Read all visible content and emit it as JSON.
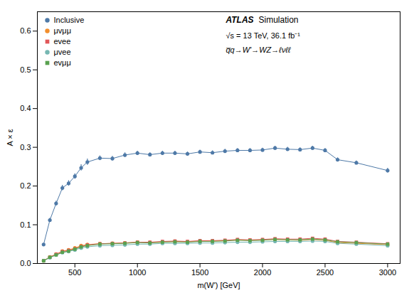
{
  "chart_data": {
    "type": "line",
    "xlabel": "m(W') [GeV]",
    "ylabel": "A × ε",
    "xlim": [
      200,
      3100
    ],
    "ylim": [
      0,
      0.65
    ],
    "xticks": [
      500,
      1000,
      1500,
      2000,
      2500,
      3000
    ],
    "yticks": [
      {
        "value": 0,
        "label": "0.0"
      },
      0.1,
      0.2,
      0.3,
      0.4,
      0.5,
      0.6
    ],
    "grid": false,
    "legend": "upper left",
    "annotations": [
      "ATLAS",
      "Simulation",
      "√s = 13 TeV, 36.1 fb⁻¹",
      "q̅q→W'→WZ→ℓνℓℓ"
    ],
    "x": [
      250,
      300,
      350,
      400,
      450,
      500,
      550,
      600,
      700,
      800,
      900,
      1000,
      1100,
      1200,
      1300,
      1400,
      1500,
      1600,
      1700,
      1800,
      1900,
      2000,
      2100,
      2200,
      2300,
      2400,
      2500,
      2600,
      2750,
      3000
    ],
    "series": [
      {
        "name": "Inclusive",
        "marker": "circle",
        "values": [
          0.049,
          0.112,
          0.155,
          0.195,
          0.207,
          0.225,
          0.247,
          0.262,
          0.272,
          0.271,
          0.28,
          0.285,
          0.281,
          0.285,
          0.285,
          0.283,
          0.288,
          0.286,
          0.29,
          0.292,
          0.292,
          0.293,
          0.298,
          0.295,
          0.294,
          0.298,
          0.292,
          0.268,
          0.26,
          0.24
        ],
        "errors": [
          0.003,
          0.005,
          0.006,
          0.007,
          0.007,
          0.007,
          0.008,
          0.008,
          0.006,
          0.006,
          0.006,
          0.005,
          0.005,
          0.005,
          0.005,
          0.005,
          0.005,
          0.005,
          0.005,
          0.005,
          0.005,
          0.005,
          0.005,
          0.005,
          0.005,
          0.005,
          0.005,
          0.005,
          0.005,
          0.006
        ]
      },
      {
        "name": "μvμμ",
        "marker": "circle",
        "values": [
          0.007,
          0.017,
          0.024,
          0.032,
          0.035,
          0.04,
          0.046,
          0.049,
          0.051,
          0.052,
          0.053,
          0.055,
          0.054,
          0.055,
          0.057,
          0.056,
          0.058,
          0.058,
          0.059,
          0.061,
          0.06,
          0.061,
          0.062,
          0.061,
          0.06,
          0.062,
          0.06,
          0.054,
          0.052,
          0.049
        ],
        "errors": [
          0.001,
          0.002,
          0.002,
          0.003,
          0.003,
          0.003,
          0.003,
          0.003,
          0.002,
          0.002,
          0.002,
          0.002,
          0.002,
          0.002,
          0.002,
          0.002,
          0.002,
          0.002,
          0.002,
          0.002,
          0.002,
          0.002,
          0.002,
          0.002,
          0.002,
          0.002,
          0.002,
          0.002,
          0.002,
          0.002
        ]
      },
      {
        "name": "evee",
        "marker": "square",
        "values": [
          0.007,
          0.016,
          0.024,
          0.031,
          0.034,
          0.038,
          0.044,
          0.048,
          0.051,
          0.052,
          0.053,
          0.055,
          0.055,
          0.057,
          0.058,
          0.057,
          0.059,
          0.059,
          0.06,
          0.062,
          0.061,
          0.062,
          0.064,
          0.063,
          0.063,
          0.065,
          0.063,
          0.057,
          0.055,
          0.051
        ],
        "errors": [
          0.001,
          0.002,
          0.002,
          0.002,
          0.002,
          0.003,
          0.003,
          0.003,
          0.002,
          0.002,
          0.002,
          0.002,
          0.002,
          0.002,
          0.002,
          0.002,
          0.002,
          0.002,
          0.002,
          0.002,
          0.002,
          0.002,
          0.002,
          0.002,
          0.002,
          0.002,
          0.002,
          0.002,
          0.002,
          0.002
        ]
      },
      {
        "name": "μvee",
        "marker": "circle",
        "values": [
          0.007,
          0.015,
          0.022,
          0.028,
          0.031,
          0.035,
          0.04,
          0.043,
          0.046,
          0.047,
          0.048,
          0.05,
          0.05,
          0.052,
          0.052,
          0.052,
          0.053,
          0.053,
          0.054,
          0.055,
          0.055,
          0.056,
          0.057,
          0.057,
          0.057,
          0.058,
          0.057,
          0.052,
          0.05,
          0.046
        ],
        "errors": [
          0.001,
          0.002,
          0.002,
          0.002,
          0.002,
          0.003,
          0.003,
          0.003,
          0.002,
          0.002,
          0.002,
          0.002,
          0.002,
          0.002,
          0.002,
          0.002,
          0.002,
          0.002,
          0.002,
          0.002,
          0.002,
          0.002,
          0.002,
          0.002,
          0.002,
          0.002,
          0.002,
          0.002,
          0.002,
          0.002
        ]
      },
      {
        "name": "evμμ",
        "marker": "square",
        "values": [
          0.007,
          0.016,
          0.022,
          0.029,
          0.032,
          0.037,
          0.043,
          0.046,
          0.05,
          0.051,
          0.052,
          0.054,
          0.053,
          0.055,
          0.056,
          0.055,
          0.057,
          0.057,
          0.058,
          0.06,
          0.059,
          0.06,
          0.062,
          0.061,
          0.061,
          0.063,
          0.061,
          0.056,
          0.054,
          0.05
        ],
        "errors": [
          0.001,
          0.002,
          0.002,
          0.002,
          0.002,
          0.003,
          0.003,
          0.003,
          0.002,
          0.002,
          0.002,
          0.002,
          0.002,
          0.002,
          0.002,
          0.002,
          0.002,
          0.002,
          0.002,
          0.002,
          0.002,
          0.002,
          0.002,
          0.002,
          0.002,
          0.002,
          0.002,
          0.002,
          0.002,
          0.002
        ]
      }
    ]
  }
}
